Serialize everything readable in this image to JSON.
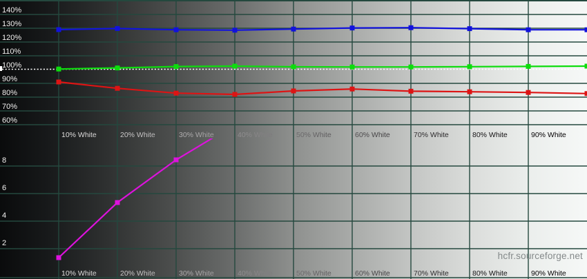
{
  "watermark": "hcfr.sourceforge.net",
  "colors": {
    "grid": "#24483e",
    "reference_line": "#ffffff",
    "red": "#dd1414",
    "green": "#0ddd0d",
    "blue": "#1212dd",
    "magenta": "#dd12dd",
    "watermark_text": "#84898a"
  },
  "x_labels": [
    "10% White",
    "20% White",
    "30% White",
    "40% White",
    "50% White",
    "60% White",
    "70% White",
    "80% White",
    "90% White"
  ],
  "chart_data": [
    {
      "name": "rgb-levels",
      "type": "line",
      "categories": [
        "10% White",
        "20% White",
        "30% White",
        "40% White",
        "50% White",
        "60% White",
        "70% White",
        "80% White",
        "90% White"
      ],
      "x_percent": [
        10,
        20,
        30,
        40,
        50,
        60,
        70,
        80,
        90,
        100
      ],
      "y_ticks": [
        "140%",
        "130%",
        "120%",
        "110%",
        "100%",
        "90%",
        "80%",
        "70%",
        "60%"
      ],
      "ylim": [
        60,
        150
      ],
      "reference_line_percent": 100,
      "legend": "none",
      "grid": true,
      "series": [
        {
          "name": "red",
          "color": "#dd1414",
          "values": [
            91.0,
            86.4,
            82.9,
            82.0,
            84.5,
            85.9,
            84.3,
            83.9,
            83.4,
            82.6
          ]
        },
        {
          "name": "green",
          "color": "#0ddd0d",
          "values": [
            100.4,
            101.2,
            102.2,
            102.5,
            102.0,
            101.9,
            101.9,
            102.1,
            102.3,
            102.5
          ]
        },
        {
          "name": "blue",
          "color": "#1212dd",
          "values": [
            129.0,
            129.8,
            128.9,
            128.6,
            129.4,
            130.2,
            130.4,
            129.7,
            128.9,
            128.9
          ]
        }
      ]
    },
    {
      "name": "gamma",
      "type": "line",
      "categories": [
        "10% White",
        "20% White",
        "30% White",
        "40% White",
        "50% White",
        "60% White",
        "70% White",
        "80% White",
        "90% White"
      ],
      "x_percent": [
        10,
        20,
        30,
        40
      ],
      "y_ticks": [
        "8",
        "6",
        "4",
        "2"
      ],
      "ylim": [
        0,
        10
      ],
      "legend": "none",
      "grid": true,
      "series": [
        {
          "name": "magenta",
          "color": "#dd12dd",
          "values": [
            1.35,
            5.35,
            8.45,
            11.0
          ],
          "offscale_from_index": 3
        }
      ]
    }
  ]
}
